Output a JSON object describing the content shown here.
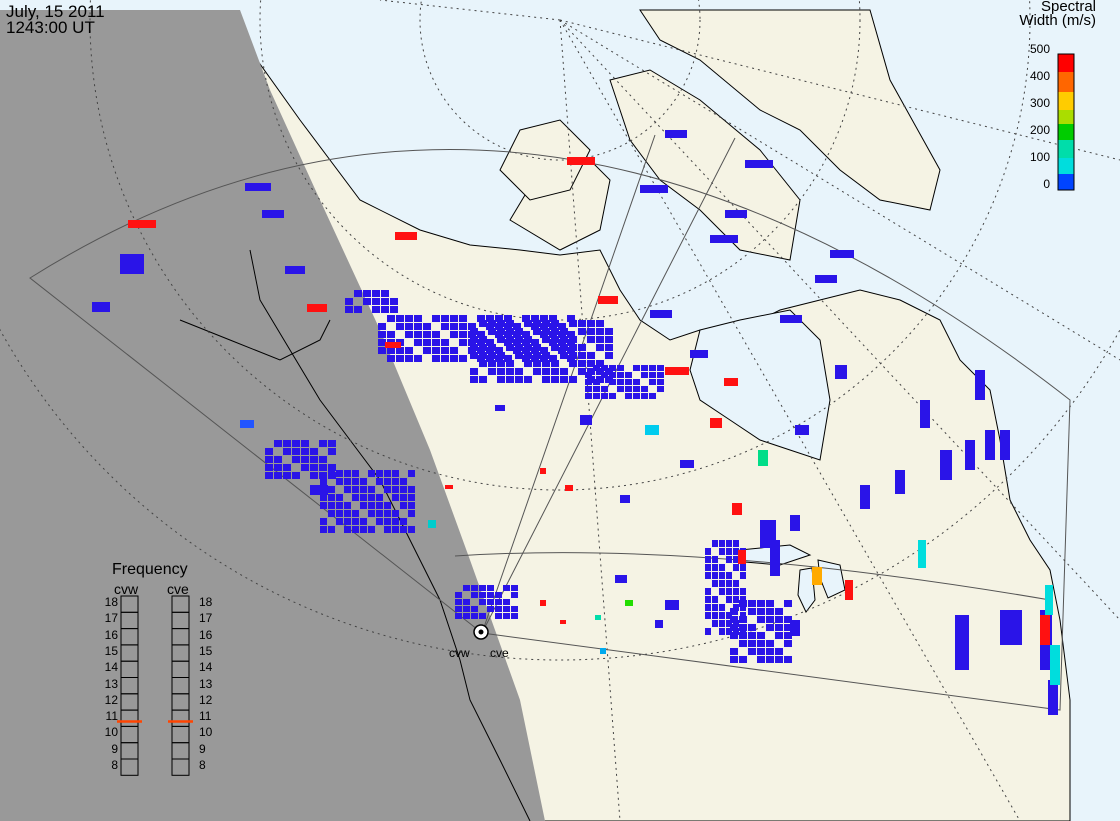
{
  "header": {
    "date": "July, 15 2011",
    "time": "1243:00 UT"
  },
  "colorbar": {
    "title_line1": "Spectral",
    "title_line2": "Width (m/s)",
    "ticks": [
      "500",
      "400",
      "300",
      "200",
      "100",
      "0"
    ],
    "colors": [
      "#ff0000",
      "#ff9900",
      "#ffee00",
      "#00dd00",
      "#00dddd",
      "#0000ff"
    ]
  },
  "frequency_panel": {
    "title": "Frequency",
    "radars": [
      "cvw",
      "cve"
    ],
    "levels": [
      "18",
      "17",
      "16",
      "15",
      "14",
      "13",
      "12",
      "11",
      "10",
      "9",
      "8"
    ],
    "cvw_frequency": 10.8,
    "cve_frequency": 10.8,
    "marker_color": "#ff4400"
  },
  "radars": {
    "west_label": "cvw",
    "east_label": "cve"
  },
  "colors": {
    "ocean": "#e8f4fb",
    "land": "#f5f3e4",
    "night": "#999999",
    "coast": "#000000",
    "grid": "#444444",
    "fov": "#555555",
    "scatter_main": "#2a14e8"
  }
}
